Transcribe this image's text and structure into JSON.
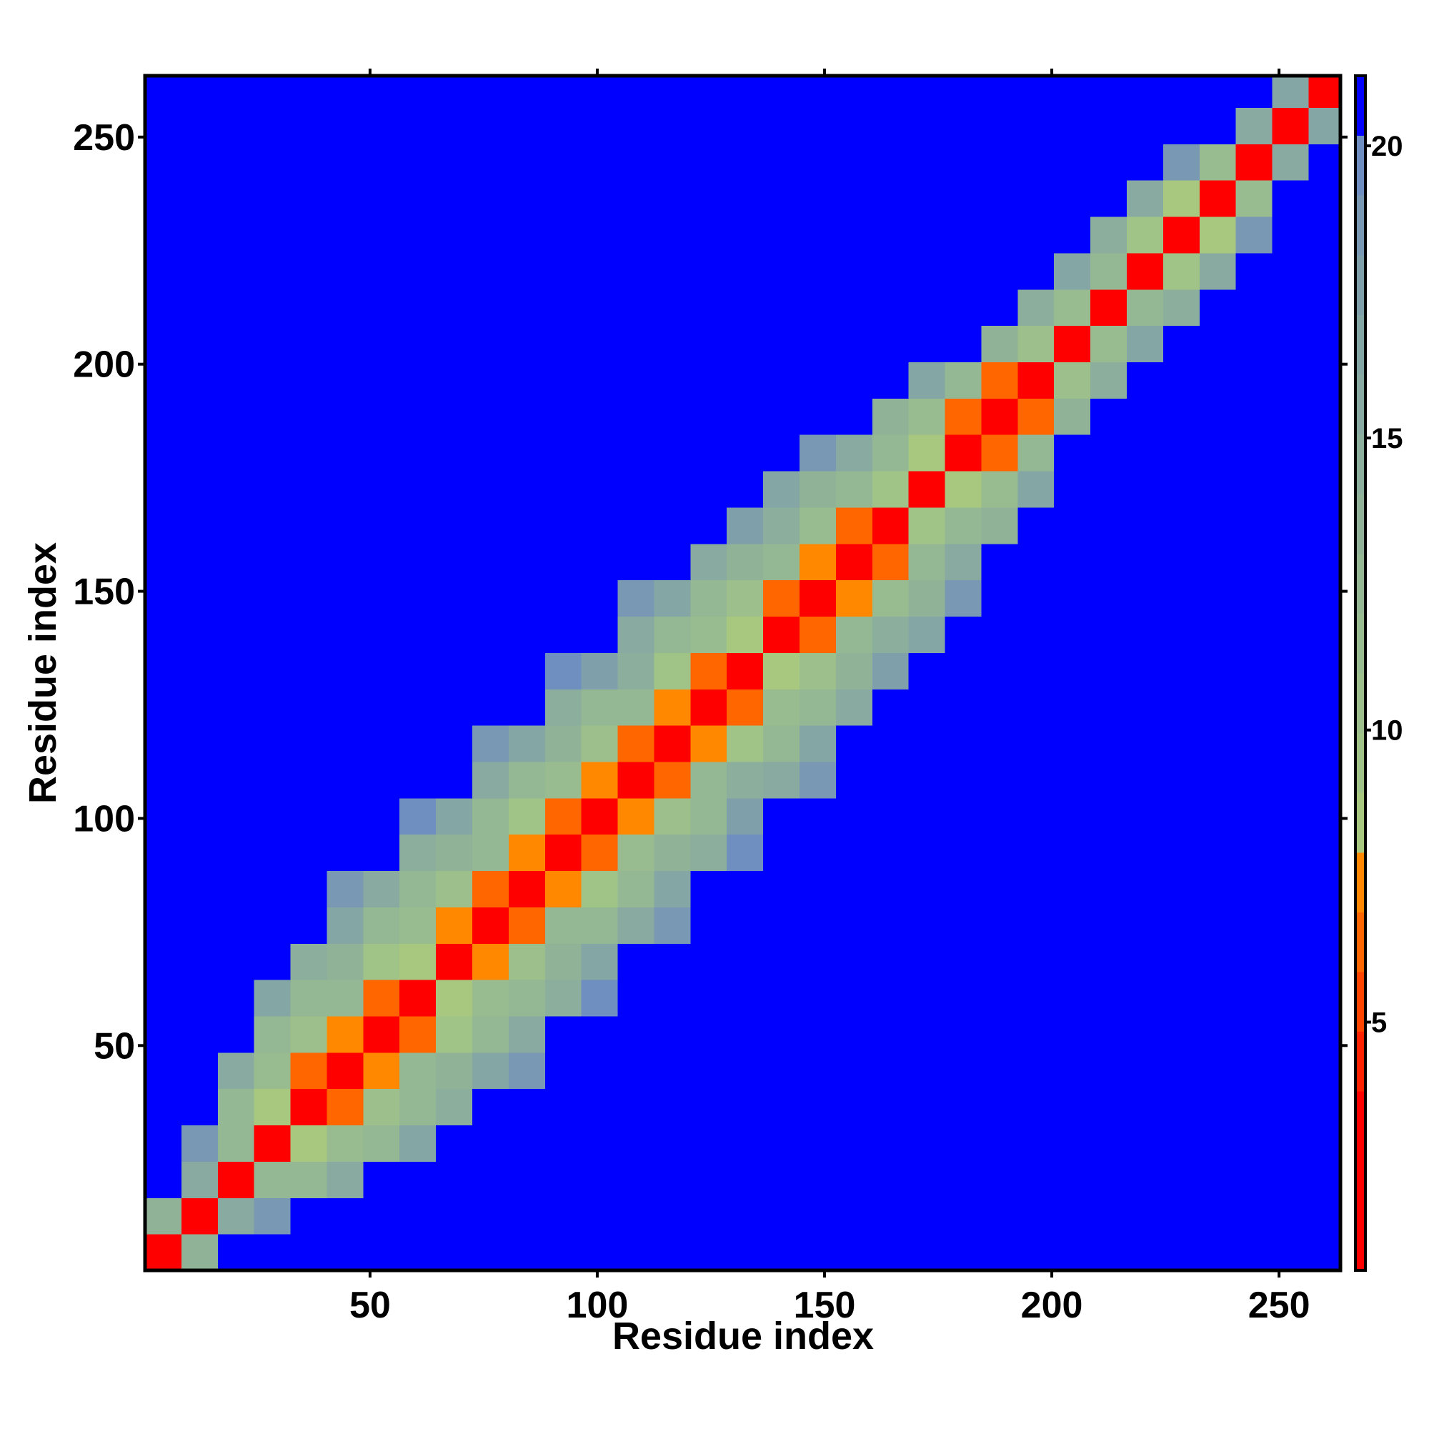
{
  "chart_data": {
    "type": "heatmap",
    "xlabel": "Residue index",
    "ylabel": "Residue index",
    "xlim": [
      0.5,
      263.5
    ],
    "ylim": [
      0.5,
      263.5
    ],
    "xticks": [
      50,
      100,
      150,
      200,
      250
    ],
    "yticks": [
      50,
      100,
      150,
      200,
      250
    ],
    "zlim": [
      0.75,
      21.2
    ],
    "zticks": [
      5,
      10,
      15,
      20
    ],
    "colors": [
      "#ff0000",
      "#ff0000",
      "#ff0000",
      "#ff2200",
      "#ff4400",
      "#ff6600",
      "#ff8800",
      "#a8c880",
      "#a0c488",
      "#9cbf8c",
      "#98bb90",
      "#94b794",
      "#90b398",
      "#8cae9c",
      "#88aaa0",
      "#84a6a4",
      "#7f9fab",
      "#7898b4",
      "#6f8fc0",
      "#0000ff"
    ],
    "x": [
      4.5,
      12.5,
      20.5,
      28.5,
      36.5,
      44.5,
      52.5,
      60.5,
      68.5,
      76.5,
      84.5,
      92.5,
      100.5,
      108.5,
      116.5,
      124.5,
      132.5,
      140.5,
      148.5,
      156.5,
      164.5,
      172.5,
      180.5,
      188.5,
      196.5,
      204.5,
      212.5,
      220.5,
      228.5,
      236.5,
      244.5,
      252.5,
      260.5
    ],
    "y": [
      4.5,
      12.5,
      20.5,
      28.5,
      36.5,
      44.5,
      52.5,
      60.5,
      68.5,
      76.5,
      84.5,
      92.5,
      100.5,
      108.5,
      116.5,
      124.5,
      132.5,
      140.5,
      148.5,
      156.5,
      164.5,
      172.5,
      180.5,
      188.5,
      196.5,
      204.5,
      212.5,
      220.5,
      228.5,
      236.5,
      244.5,
      252.5,
      260.5
    ],
    "z": [
      [
        2,
        14,
        21,
        21,
        21,
        21,
        21,
        21,
        21,
        21,
        21,
        21,
        21,
        21,
        21,
        21,
        21,
        21,
        21,
        21,
        21,
        21,
        21,
        21,
        21,
        21,
        21,
        21,
        21,
        21,
        21,
        21,
        21
      ],
      [
        14,
        2,
        16,
        19,
        21,
        21,
        21,
        21,
        21,
        21,
        21,
        21,
        21,
        21,
        21,
        21,
        21,
        21,
        21,
        21,
        21,
        21,
        21,
        21,
        21,
        21,
        21,
        21,
        21,
        21,
        21,
        21,
        21
      ],
      [
        21,
        16,
        2,
        12,
        13,
        16,
        21,
        21,
        21,
        21,
        21,
        21,
        21,
        21,
        21,
        21,
        21,
        21,
        21,
        21,
        21,
        21,
        21,
        21,
        21,
        21,
        21,
        21,
        21,
        21,
        21,
        21,
        21
      ],
      [
        21,
        19,
        12,
        2,
        8,
        11,
        13,
        17,
        21,
        21,
        21,
        21,
        21,
        21,
        21,
        21,
        21,
        21,
        21,
        21,
        21,
        21,
        21,
        21,
        21,
        21,
        21,
        21,
        21,
        21,
        21,
        21,
        21
      ],
      [
        21,
        21,
        13,
        8,
        2,
        6,
        10,
        12,
        15,
        21,
        21,
        21,
        21,
        21,
        21,
        21,
        21,
        21,
        21,
        21,
        21,
        21,
        21,
        21,
        21,
        21,
        21,
        21,
        21,
        21,
        21,
        21,
        21
      ],
      [
        21,
        21,
        16,
        11,
        6,
        2,
        7,
        12,
        14,
        17,
        19,
        21,
        21,
        21,
        21,
        21,
        21,
        21,
        21,
        21,
        21,
        21,
        21,
        21,
        21,
        21,
        21,
        21,
        21,
        21,
        21,
        21,
        21
      ],
      [
        21,
        21,
        21,
        13,
        10,
        7,
        2,
        6,
        9,
        13,
        16,
        21,
        21,
        21,
        21,
        21,
        21,
        21,
        21,
        21,
        21,
        21,
        21,
        21,
        21,
        21,
        21,
        21,
        21,
        21,
        21,
        21,
        21
      ],
      [
        21,
        21,
        21,
        17,
        12,
        12,
        6,
        2,
        8,
        11,
        12,
        15,
        20,
        21,
        21,
        21,
        21,
        21,
        21,
        21,
        21,
        21,
        21,
        21,
        21,
        21,
        21,
        21,
        21,
        21,
        21,
        21,
        21
      ],
      [
        21,
        21,
        21,
        21,
        15,
        14,
        9,
        8,
        2,
        7,
        10,
        14,
        17,
        21,
        21,
        21,
        21,
        21,
        21,
        21,
        21,
        21,
        21,
        21,
        21,
        21,
        21,
        21,
        21,
        21,
        21,
        21,
        21
      ],
      [
        21,
        21,
        21,
        21,
        21,
        17,
        13,
        11,
        7,
        2,
        6,
        12,
        13,
        16,
        19,
        21,
        21,
        21,
        21,
        21,
        21,
        21,
        21,
        21,
        21,
        21,
        21,
        21,
        21,
        21,
        21,
        21,
        21
      ],
      [
        21,
        21,
        21,
        21,
        21,
        19,
        16,
        12,
        10,
        6,
        2,
        7,
        9,
        12,
        17,
        21,
        21,
        21,
        21,
        21,
        21,
        21,
        21,
        21,
        21,
        21,
        21,
        21,
        21,
        21,
        21,
        21,
        21
      ],
      [
        21,
        21,
        21,
        21,
        21,
        21,
        21,
        15,
        14,
        12,
        7,
        2,
        6,
        11,
        14,
        15,
        20,
        21,
        21,
        21,
        21,
        21,
        21,
        21,
        21,
        21,
        21,
        21,
        21,
        21,
        21,
        21,
        21
      ],
      [
        21,
        21,
        21,
        21,
        21,
        21,
        21,
        20,
        17,
        13,
        9,
        6,
        2,
        7,
        10,
        13,
        18,
        21,
        21,
        21,
        21,
        21,
        21,
        21,
        21,
        21,
        21,
        21,
        21,
        21,
        21,
        21,
        21
      ],
      [
        21,
        21,
        21,
        21,
        21,
        21,
        21,
        21,
        21,
        16,
        12,
        11,
        7,
        2,
        6,
        12,
        15,
        16,
        19,
        21,
        21,
        21,
        21,
        21,
        21,
        21,
        21,
        21,
        21,
        21,
        21,
        21,
        21
      ],
      [
        21,
        21,
        21,
        21,
        21,
        21,
        21,
        21,
        21,
        19,
        17,
        14,
        10,
        6,
        2,
        7,
        9,
        12,
        17,
        21,
        21,
        21,
        21,
        21,
        21,
        21,
        21,
        21,
        21,
        21,
        21,
        21,
        21
      ],
      [
        21,
        21,
        21,
        21,
        21,
        21,
        21,
        21,
        21,
        21,
        21,
        15,
        13,
        12,
        7,
        2,
        6,
        11,
        13,
        16,
        21,
        21,
        21,
        21,
        21,
        21,
        21,
        21,
        21,
        21,
        21,
        21,
        21
      ],
      [
        21,
        21,
        21,
        21,
        21,
        21,
        21,
        21,
        21,
        21,
        21,
        20,
        18,
        15,
        9,
        6,
        2,
        8,
        10,
        14,
        18,
        21,
        21,
        21,
        21,
        21,
        21,
        21,
        21,
        21,
        21,
        21,
        21
      ],
      [
        21,
        21,
        21,
        21,
        21,
        21,
        21,
        21,
        21,
        21,
        21,
        21,
        21,
        16,
        12,
        11,
        8,
        2,
        6,
        12,
        15,
        17,
        21,
        21,
        21,
        21,
        21,
        21,
        21,
        21,
        21,
        21,
        21
      ],
      [
        21,
        21,
        21,
        21,
        21,
        21,
        21,
        21,
        21,
        21,
        21,
        21,
        21,
        19,
        17,
        13,
        10,
        6,
        2,
        7,
        11,
        14,
        19,
        21,
        21,
        21,
        21,
        21,
        21,
        21,
        21,
        21,
        21
      ],
      [
        21,
        21,
        21,
        21,
        21,
        21,
        21,
        21,
        21,
        21,
        21,
        21,
        21,
        21,
        21,
        16,
        14,
        12,
        7,
        2,
        6,
        13,
        16,
        21,
        21,
        21,
        21,
        21,
        21,
        21,
        21,
        21,
        21
      ],
      [
        21,
        21,
        21,
        21,
        21,
        21,
        21,
        21,
        21,
        21,
        21,
        21,
        21,
        21,
        21,
        21,
        18,
        15,
        11,
        6,
        2,
        9,
        12,
        14,
        21,
        21,
        21,
        21,
        21,
        21,
        21,
        21,
        21
      ],
      [
        21,
        21,
        21,
        21,
        21,
        21,
        21,
        21,
        21,
        21,
        21,
        21,
        21,
        21,
        21,
        21,
        21,
        17,
        14,
        13,
        9,
        2,
        8,
        11,
        17,
        21,
        21,
        21,
        21,
        21,
        21,
        21,
        21
      ],
      [
        21,
        21,
        21,
        21,
        21,
        21,
        21,
        21,
        21,
        21,
        21,
        21,
        21,
        21,
        21,
        21,
        21,
        21,
        19,
        16,
        12,
        8,
        2,
        6,
        12,
        21,
        21,
        21,
        21,
        21,
        21,
        21,
        21
      ],
      [
        21,
        21,
        21,
        21,
        21,
        21,
        21,
        21,
        21,
        21,
        21,
        21,
        21,
        21,
        21,
        21,
        21,
        21,
        21,
        21,
        14,
        11,
        6,
        2,
        6,
        14,
        21,
        21,
        21,
        21,
        21,
        21,
        21
      ],
      [
        21,
        21,
        21,
        21,
        21,
        21,
        21,
        21,
        21,
        21,
        21,
        21,
        21,
        21,
        21,
        21,
        21,
        21,
        21,
        21,
        21,
        17,
        12,
        6,
        2,
        10,
        15,
        21,
        21,
        21,
        21,
        21,
        21
      ],
      [
        21,
        21,
        21,
        21,
        21,
        21,
        21,
        21,
        21,
        21,
        21,
        21,
        21,
        21,
        21,
        21,
        21,
        21,
        21,
        21,
        21,
        21,
        21,
        14,
        10,
        2,
        11,
        17,
        21,
        21,
        21,
        21,
        21
      ],
      [
        21,
        21,
        21,
        21,
        21,
        21,
        21,
        21,
        21,
        21,
        21,
        21,
        21,
        21,
        21,
        21,
        21,
        21,
        21,
        21,
        21,
        21,
        21,
        21,
        15,
        11,
        2,
        12,
        15,
        21,
        21,
        21,
        21
      ],
      [
        21,
        21,
        21,
        21,
        21,
        21,
        21,
        21,
        21,
        21,
        21,
        21,
        21,
        21,
        21,
        21,
        21,
        21,
        21,
        21,
        21,
        21,
        21,
        21,
        21,
        17,
        12,
        2,
        9,
        16,
        21,
        21,
        21
      ],
      [
        21,
        21,
        21,
        21,
        21,
        21,
        21,
        21,
        21,
        21,
        21,
        21,
        21,
        21,
        21,
        21,
        21,
        21,
        21,
        21,
        21,
        21,
        21,
        21,
        21,
        21,
        15,
        9,
        2,
        8,
        19,
        21,
        21
      ],
      [
        21,
        21,
        21,
        21,
        21,
        21,
        21,
        21,
        21,
        21,
        21,
        21,
        21,
        21,
        21,
        21,
        21,
        21,
        21,
        21,
        21,
        21,
        21,
        21,
        21,
        21,
        21,
        16,
        8,
        2,
        11,
        21,
        21
      ],
      [
        21,
        21,
        21,
        21,
        21,
        21,
        21,
        21,
        21,
        21,
        21,
        21,
        21,
        21,
        21,
        21,
        21,
        21,
        21,
        21,
        21,
        21,
        21,
        21,
        21,
        21,
        21,
        21,
        19,
        11,
        2,
        16,
        21
      ],
      [
        21,
        21,
        21,
        21,
        21,
        21,
        21,
        21,
        21,
        21,
        21,
        21,
        21,
        21,
        21,
        21,
        21,
        21,
        21,
        21,
        21,
        21,
        21,
        21,
        21,
        21,
        21,
        21,
        21,
        21,
        16,
        2,
        17
      ],
      [
        21,
        21,
        21,
        21,
        21,
        21,
        21,
        21,
        21,
        21,
        21,
        21,
        21,
        21,
        21,
        21,
        21,
        21,
        21,
        21,
        21,
        21,
        21,
        21,
        21,
        21,
        21,
        21,
        21,
        21,
        21,
        17,
        2
      ]
    ]
  }
}
